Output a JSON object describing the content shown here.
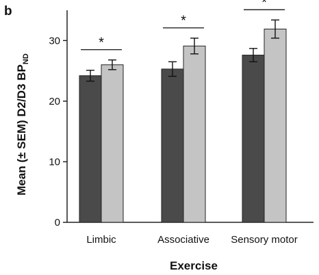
{
  "panel_label": "b",
  "chart_data": {
    "type": "bar",
    "categories": [
      "Limbic",
      "Associative",
      "Sensory motor"
    ],
    "series": [
      {
        "values": [
          24.2,
          25.3,
          27.6
        ],
        "errors": [
          0.9,
          1.2,
          1.1
        ],
        "color": "#4a4a4a"
      },
      {
        "values": [
          26.0,
          29.1,
          31.9
        ],
        "errors": [
          0.8,
          1.3,
          1.5
        ],
        "color": "#c4c4c4"
      }
    ],
    "significance": [
      "*",
      "*",
      "*"
    ],
    "xlabel": "Exercise",
    "ylabel": {
      "main": "Mean (± SEM) D2/D3  BP",
      "subscript": "ND"
    },
    "ylim": [
      0,
      35
    ],
    "yticks": [
      0,
      10,
      20,
      30
    ],
    "grid": false,
    "legend": "none"
  }
}
